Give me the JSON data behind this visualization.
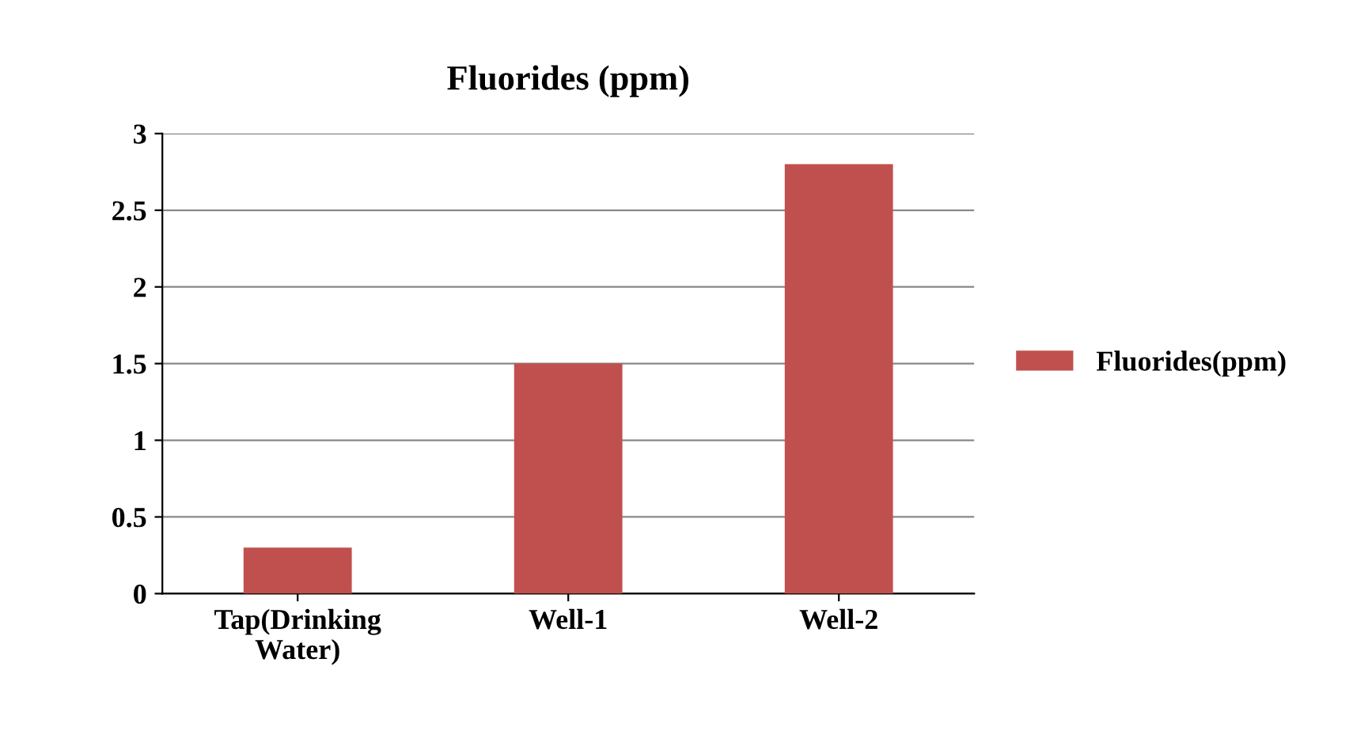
{
  "chart_data": {
    "type": "bar",
    "title": "Fluorides (ppm)",
    "categories": [
      "Tap(Drinking\nWater)",
      "Well-1",
      "Well-2"
    ],
    "series": [
      {
        "name": "Fluorides(ppm)",
        "color": "#c0504d",
        "values": [
          0.3,
          1.5,
          2.8
        ]
      }
    ],
    "ylim": [
      0,
      3
    ],
    "yticks": [
      0,
      0.5,
      1,
      1.5,
      2,
      2.5,
      3
    ],
    "grid": "y",
    "legend": "right"
  }
}
